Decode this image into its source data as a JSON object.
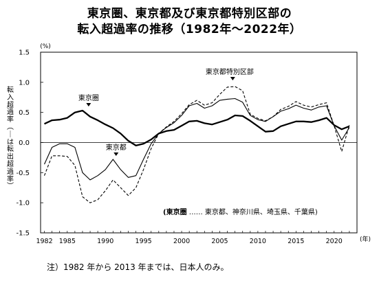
{
  "chart_data": {
    "type": "line",
    "title": "東京圏、東京都及び東京都特別区部の",
    "subtitle": "転入超過率の推移（1982年〜2022年）",
    "ylabel": "転入超過率（－は転出超過率）",
    "yunit": "(%)",
    "xunit": "(年)",
    "xlim": [
      1981.5,
      2023
    ],
    "ylim": [
      -1.5,
      1.5
    ],
    "x_ticks": [
      1982,
      1985,
      1990,
      1995,
      2000,
      2005,
      2010,
      2015,
      2020
    ],
    "y_ticks": [
      "1.5",
      "1.0",
      "0.5",
      "0.0",
      "-0.5",
      "-1.0",
      "-1.5"
    ],
    "y_tick_values": [
      1.5,
      1.0,
      0.5,
      0.0,
      -0.5,
      -1.0,
      -1.5
    ],
    "legend": "(東京圏 …… 東京都、神奈川県、埼玉県、千葉県)",
    "annotations": {
      "tokyo_area": "東京圏",
      "tokyo_metro": "東京都",
      "special_wards": "東京都特別区部"
    },
    "x": [
      1982,
      1983,
      1984,
      1985,
      1986,
      1987,
      1988,
      1989,
      1990,
      1991,
      1992,
      1993,
      1994,
      1995,
      1996,
      1997,
      1998,
      1999,
      2000,
      2001,
      2002,
      2003,
      2004,
      2005,
      2006,
      2007,
      2008,
      2009,
      2010,
      2011,
      2012,
      2013,
      2014,
      2015,
      2016,
      2017,
      2018,
      2019,
      2020,
      2021,
      2022
    ],
    "series": [
      {
        "name": "東京圏",
        "style": "thick-solid",
        "values": [
          0.31,
          0.37,
          0.38,
          0.41,
          0.5,
          0.53,
          0.43,
          0.37,
          0.3,
          0.24,
          0.15,
          0.03,
          -0.05,
          -0.02,
          0.05,
          0.15,
          0.19,
          0.21,
          0.28,
          0.35,
          0.36,
          0.32,
          0.3,
          0.34,
          0.38,
          0.45,
          0.44,
          0.36,
          0.27,
          0.18,
          0.19,
          0.27,
          0.31,
          0.35,
          0.35,
          0.34,
          0.37,
          0.41,
          0.29,
          0.22,
          0.27
        ]
      },
      {
        "name": "東京都",
        "style": "thin-solid",
        "values": [
          -0.36,
          -0.08,
          -0.02,
          -0.02,
          -0.08,
          -0.5,
          -0.62,
          -0.55,
          -0.45,
          -0.28,
          -0.45,
          -0.58,
          -0.55,
          -0.28,
          -0.02,
          0.15,
          0.25,
          0.33,
          0.45,
          0.61,
          0.65,
          0.57,
          0.61,
          0.7,
          0.72,
          0.73,
          0.67,
          0.45,
          0.38,
          0.35,
          0.43,
          0.52,
          0.56,
          0.62,
          0.57,
          0.54,
          0.59,
          0.61,
          0.28,
          0.04,
          0.25
        ]
      },
      {
        "name": "東京都特別区部",
        "style": "dashed",
        "values": [
          -0.55,
          -0.22,
          -0.22,
          -0.23,
          -0.38,
          -0.9,
          -1.0,
          -0.95,
          -0.8,
          -0.62,
          -0.75,
          -0.88,
          -0.75,
          -0.45,
          -0.1,
          0.15,
          0.26,
          0.35,
          0.48,
          0.63,
          0.7,
          0.62,
          0.66,
          0.8,
          0.92,
          0.93,
          0.86,
          0.47,
          0.4,
          0.36,
          0.43,
          0.55,
          0.6,
          0.68,
          0.62,
          0.59,
          0.63,
          0.66,
          0.28,
          -0.15,
          0.29
        ]
      }
    ]
  },
  "note": "注）1982 年から 2013 年までは、日本人のみ。"
}
